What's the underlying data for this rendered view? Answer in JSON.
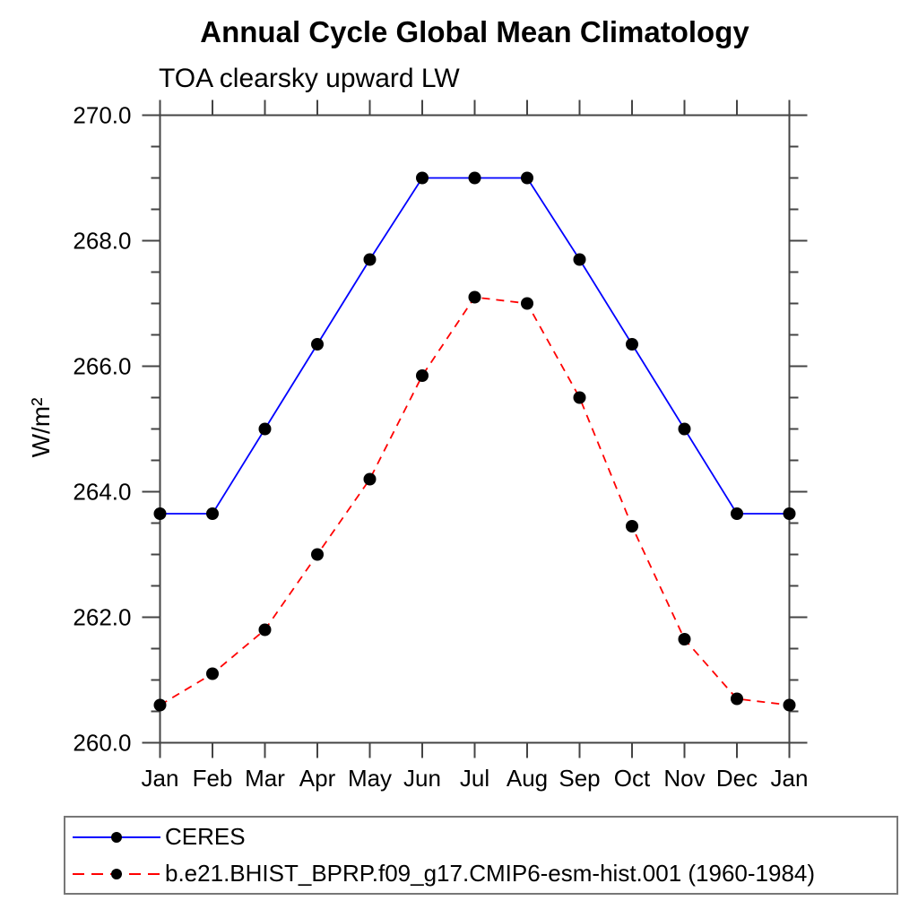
{
  "page": {
    "background": "#ffffff"
  },
  "chart_data": {
    "type": "line",
    "title": "Annual Cycle Global Mean Climatology",
    "subtitle": "TOA clearsky upward LW",
    "ylabel": "W/m²",
    "x_tick_labels": [
      "Jan",
      "Feb",
      "Mar",
      "Apr",
      "May",
      "Jun",
      "Jul",
      "Aug",
      "Sep",
      "Oct",
      "Nov",
      "Dec",
      "Jan"
    ],
    "ylim": [
      260.0,
      270.0
    ],
    "ytick_major_interval": 2.0,
    "ytick_minor_interval": 0.5,
    "ytick_label_decimals": 1,
    "grid": false,
    "legend_position": "bottom-left",
    "axis_color": "#444444",
    "series": [
      {
        "name": "CERES",
        "color": "#0000ff",
        "line_style": "solid",
        "marker": "dot",
        "marker_color": "#000000",
        "values": [
          263.65,
          263.65,
          265.0,
          266.35,
          267.7,
          269.0,
          269.0,
          269.0,
          267.7,
          266.35,
          265.0,
          263.65,
          263.65
        ]
      },
      {
        "name": "b.e21.BHIST_BPRP.f09_g17.CMIP6-esm-hist.001 (1960-1984)",
        "color": "#ff0000",
        "line_style": "dashed",
        "marker": "dot",
        "marker_color": "#000000",
        "values": [
          260.6,
          261.1,
          261.8,
          263.0,
          264.2,
          265.85,
          267.1,
          267.0,
          265.5,
          263.45,
          261.65,
          260.7,
          260.6
        ]
      }
    ]
  }
}
